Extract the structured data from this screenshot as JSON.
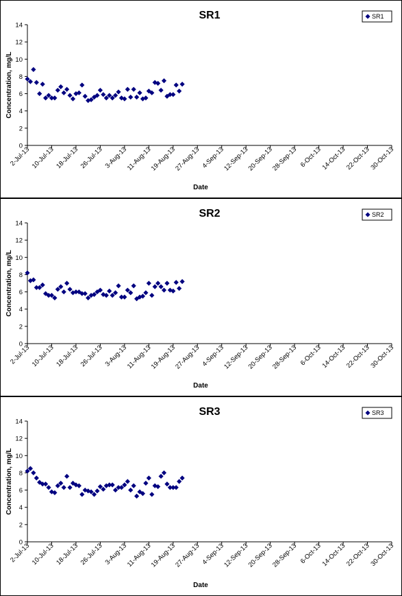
{
  "chart_data": [
    {
      "type": "scatter",
      "title": "SR1",
      "xlabel": "Date",
      "ylabel": "Concentration, mg/L",
      "ylim": [
        0,
        14
      ],
      "yticks": [
        "0",
        "2",
        "4",
        "6",
        "8",
        "10",
        "12",
        "14"
      ],
      "xticks": [
        "2-Jul-13",
        "10-Jul-13",
        "18-Jul-13",
        "26-Jul-13",
        "3-Aug-13",
        "11-Aug-13",
        "19-Aug-13",
        "27-Aug-13",
        "4-Sep-13",
        "12-Sep-13",
        "20-Sep-13",
        "28-Sep-13",
        "6-Oct-13",
        "14-Oct-13",
        "22-Oct-13",
        "30-Oct-13"
      ],
      "legend": "top-right",
      "marker_color": "#000080",
      "series": [
        {
          "name": "SR1",
          "points": [
            [
              "2013-07-02",
              7.7
            ],
            [
              "2013-07-03",
              7.4
            ],
            [
              "2013-07-04",
              8.8
            ],
            [
              "2013-07-05",
              7.3
            ],
            [
              "2013-07-06",
              6.0
            ],
            [
              "2013-07-07",
              7.1
            ],
            [
              "2013-07-08",
              5.5
            ],
            [
              "2013-07-09",
              5.8
            ],
            [
              "2013-07-10",
              5.5
            ],
            [
              "2013-07-11",
              5.5
            ],
            [
              "2013-07-12",
              6.4
            ],
            [
              "2013-07-13",
              6.8
            ],
            [
              "2013-07-14",
              6.1
            ],
            [
              "2013-07-15",
              6.5
            ],
            [
              "2013-07-16",
              5.8
            ],
            [
              "2013-07-17",
              5.4
            ],
            [
              "2013-07-18",
              6.0
            ],
            [
              "2013-07-19",
              6.1
            ],
            [
              "2013-07-20",
              7.0
            ],
            [
              "2013-07-21",
              5.7
            ],
            [
              "2013-07-22",
              5.2
            ],
            [
              "2013-07-23",
              5.3
            ],
            [
              "2013-07-24",
              5.6
            ],
            [
              "2013-07-25",
              5.8
            ],
            [
              "2013-07-26",
              6.4
            ],
            [
              "2013-07-27",
              5.9
            ],
            [
              "2013-07-28",
              5.5
            ],
            [
              "2013-07-29",
              5.8
            ],
            [
              "2013-07-30",
              5.5
            ],
            [
              "2013-07-31",
              5.8
            ],
            [
              "2013-08-01",
              6.2
            ],
            [
              "2013-08-02",
              5.5
            ],
            [
              "2013-08-03",
              5.4
            ],
            [
              "2013-08-04",
              6.5
            ],
            [
              "2013-08-05",
              5.6
            ],
            [
              "2013-08-06",
              6.5
            ],
            [
              "2013-08-07",
              5.6
            ],
            [
              "2013-08-08",
              6.1
            ],
            [
              "2013-08-09",
              5.4
            ],
            [
              "2013-08-10",
              5.5
            ],
            [
              "2013-08-11",
              6.3
            ],
            [
              "2013-08-12",
              6.1
            ],
            [
              "2013-08-13",
              7.3
            ],
            [
              "2013-08-14",
              7.2
            ],
            [
              "2013-08-15",
              6.4
            ],
            [
              "2013-08-16",
              7.5
            ],
            [
              "2013-08-17",
              5.7
            ],
            [
              "2013-08-18",
              5.9
            ],
            [
              "2013-08-19",
              5.9
            ],
            [
              "2013-08-20",
              7.0
            ],
            [
              "2013-08-21",
              6.3
            ],
            [
              "2013-08-22",
              7.1
            ]
          ]
        }
      ]
    },
    {
      "type": "scatter",
      "title": "SR2",
      "xlabel": "Date",
      "ylabel": "Concentration, mg/L",
      "ylim": [
        0,
        14
      ],
      "yticks": [
        "0",
        "2",
        "4",
        "6",
        "8",
        "10",
        "12",
        "14"
      ],
      "xticks": [
        "2-Jul-13",
        "10-Jul-13",
        "18-Jul-13",
        "26-Jul-13",
        "3-Aug-13",
        "11-Aug-13",
        "19-Aug-13",
        "27-Aug-13",
        "4-Sep-13",
        "12-Sep-13",
        "20-Sep-13",
        "28-Sep-13",
        "6-Oct-13",
        "14-Oct-13",
        "22-Oct-13",
        "30-Oct-13"
      ],
      "legend": "top-right",
      "marker_color": "#000080",
      "series": [
        {
          "name": "SR2",
          "points": [
            [
              "2013-07-02",
              8.2
            ],
            [
              "2013-07-03",
              7.3
            ],
            [
              "2013-07-04",
              7.4
            ],
            [
              "2013-07-05",
              6.5
            ],
            [
              "2013-07-06",
              6.5
            ],
            [
              "2013-07-07",
              6.8
            ],
            [
              "2013-07-08",
              5.8
            ],
            [
              "2013-07-09",
              5.6
            ],
            [
              "2013-07-10",
              5.6
            ],
            [
              "2013-07-11",
              5.3
            ],
            [
              "2013-07-12",
              6.3
            ],
            [
              "2013-07-13",
              6.6
            ],
            [
              "2013-07-14",
              6.0
            ],
            [
              "2013-07-15",
              7.0
            ],
            [
              "2013-07-16",
              6.3
            ],
            [
              "2013-07-17",
              5.9
            ],
            [
              "2013-07-18",
              6.0
            ],
            [
              "2013-07-19",
              6.0
            ],
            [
              "2013-07-20",
              5.8
            ],
            [
              "2013-07-21",
              5.8
            ],
            [
              "2013-07-22",
              5.3
            ],
            [
              "2013-07-23",
              5.6
            ],
            [
              "2013-07-24",
              5.7
            ],
            [
              "2013-07-25",
              6.0
            ],
            [
              "2013-07-26",
              6.2
            ],
            [
              "2013-07-27",
              5.7
            ],
            [
              "2013-07-28",
              5.6
            ],
            [
              "2013-07-29",
              6.1
            ],
            [
              "2013-07-30",
              5.6
            ],
            [
              "2013-07-31",
              5.9
            ],
            [
              "2013-08-01",
              6.7
            ],
            [
              "2013-08-02",
              5.4
            ],
            [
              "2013-08-03",
              5.4
            ],
            [
              "2013-08-04",
              6.2
            ],
            [
              "2013-08-05",
              5.9
            ],
            [
              "2013-08-06",
              6.7
            ],
            [
              "2013-08-07",
              5.2
            ],
            [
              "2013-08-08",
              5.4
            ],
            [
              "2013-08-09",
              5.5
            ],
            [
              "2013-08-10",
              5.9
            ],
            [
              "2013-08-11",
              7.0
            ],
            [
              "2013-08-12",
              5.6
            ],
            [
              "2013-08-13",
              6.6
            ],
            [
              "2013-08-14",
              7.0
            ],
            [
              "2013-08-15",
              6.6
            ],
            [
              "2013-08-16",
              6.2
            ],
            [
              "2013-08-17",
              7.0
            ],
            [
              "2013-08-18",
              6.2
            ],
            [
              "2013-08-19",
              6.1
            ],
            [
              "2013-08-20",
              7.1
            ],
            [
              "2013-08-21",
              6.4
            ],
            [
              "2013-08-22",
              7.2
            ]
          ]
        }
      ]
    },
    {
      "type": "scatter",
      "title": "SR3",
      "xlabel": "Date",
      "ylabel": "Concentration, mg/L",
      "ylim": [
        0,
        14
      ],
      "yticks": [
        "0",
        "2",
        "4",
        "6",
        "8",
        "10",
        "12",
        "14"
      ],
      "xticks": [
        "2-Jul-13",
        "10-Jul-13",
        "18-Jul-13",
        "26-Jul-13",
        "3-Aug-13",
        "11-Aug-13",
        "19-Aug-13",
        "27-Aug-13",
        "4-Sep-13",
        "12-Sep-13",
        "20-Sep-13",
        "28-Sep-13",
        "6-Oct-13",
        "14-Oct-13",
        "22-Oct-13",
        "30-Oct-13"
      ],
      "legend": "top-right",
      "marker_color": "#000080",
      "series": [
        {
          "name": "SR3",
          "points": [
            [
              "2013-07-02",
              8.2
            ],
            [
              "2013-07-03",
              8.5
            ],
            [
              "2013-07-04",
              8.0
            ],
            [
              "2013-07-05",
              7.4
            ],
            [
              "2013-07-06",
              6.9
            ],
            [
              "2013-07-07",
              6.7
            ],
            [
              "2013-07-08",
              6.7
            ],
            [
              "2013-07-09",
              6.3
            ],
            [
              "2013-07-10",
              5.8
            ],
            [
              "2013-07-11",
              5.7
            ],
            [
              "2013-07-12",
              6.5
            ],
            [
              "2013-07-13",
              6.8
            ],
            [
              "2013-07-14",
              6.3
            ],
            [
              "2013-07-15",
              7.6
            ],
            [
              "2013-07-16",
              6.3
            ],
            [
              "2013-07-17",
              6.8
            ],
            [
              "2013-07-18",
              6.6
            ],
            [
              "2013-07-19",
              6.5
            ],
            [
              "2013-07-20",
              5.5
            ],
            [
              "2013-07-21",
              6.0
            ],
            [
              "2013-07-22",
              5.9
            ],
            [
              "2013-07-23",
              5.8
            ],
            [
              "2013-07-24",
              5.5
            ],
            [
              "2013-07-25",
              5.9
            ],
            [
              "2013-07-26",
              6.4
            ],
            [
              "2013-07-27",
              6.1
            ],
            [
              "2013-07-28",
              6.5
            ],
            [
              "2013-07-29",
              6.6
            ],
            [
              "2013-07-30",
              6.6
            ],
            [
              "2013-07-31",
              6.0
            ],
            [
              "2013-08-01",
              6.3
            ],
            [
              "2013-08-02",
              6.3
            ],
            [
              "2013-08-03",
              6.6
            ],
            [
              "2013-08-04",
              7.0
            ],
            [
              "2013-08-05",
              6.0
            ],
            [
              "2013-08-06",
              6.5
            ],
            [
              "2013-08-07",
              5.3
            ],
            [
              "2013-08-08",
              5.8
            ],
            [
              "2013-08-09",
              5.6
            ],
            [
              "2013-08-10",
              6.8
            ],
            [
              "2013-08-11",
              7.4
            ],
            [
              "2013-08-12",
              5.5
            ],
            [
              "2013-08-13",
              6.5
            ],
            [
              "2013-08-14",
              6.4
            ],
            [
              "2013-08-15",
              7.6
            ],
            [
              "2013-08-16",
              8.0
            ],
            [
              "2013-08-17",
              6.7
            ],
            [
              "2013-08-18",
              6.3
            ],
            [
              "2013-08-19",
              6.3
            ],
            [
              "2013-08-20",
              6.3
            ],
            [
              "2013-08-21",
              7.0
            ],
            [
              "2013-08-22",
              7.4
            ]
          ]
        }
      ]
    }
  ]
}
